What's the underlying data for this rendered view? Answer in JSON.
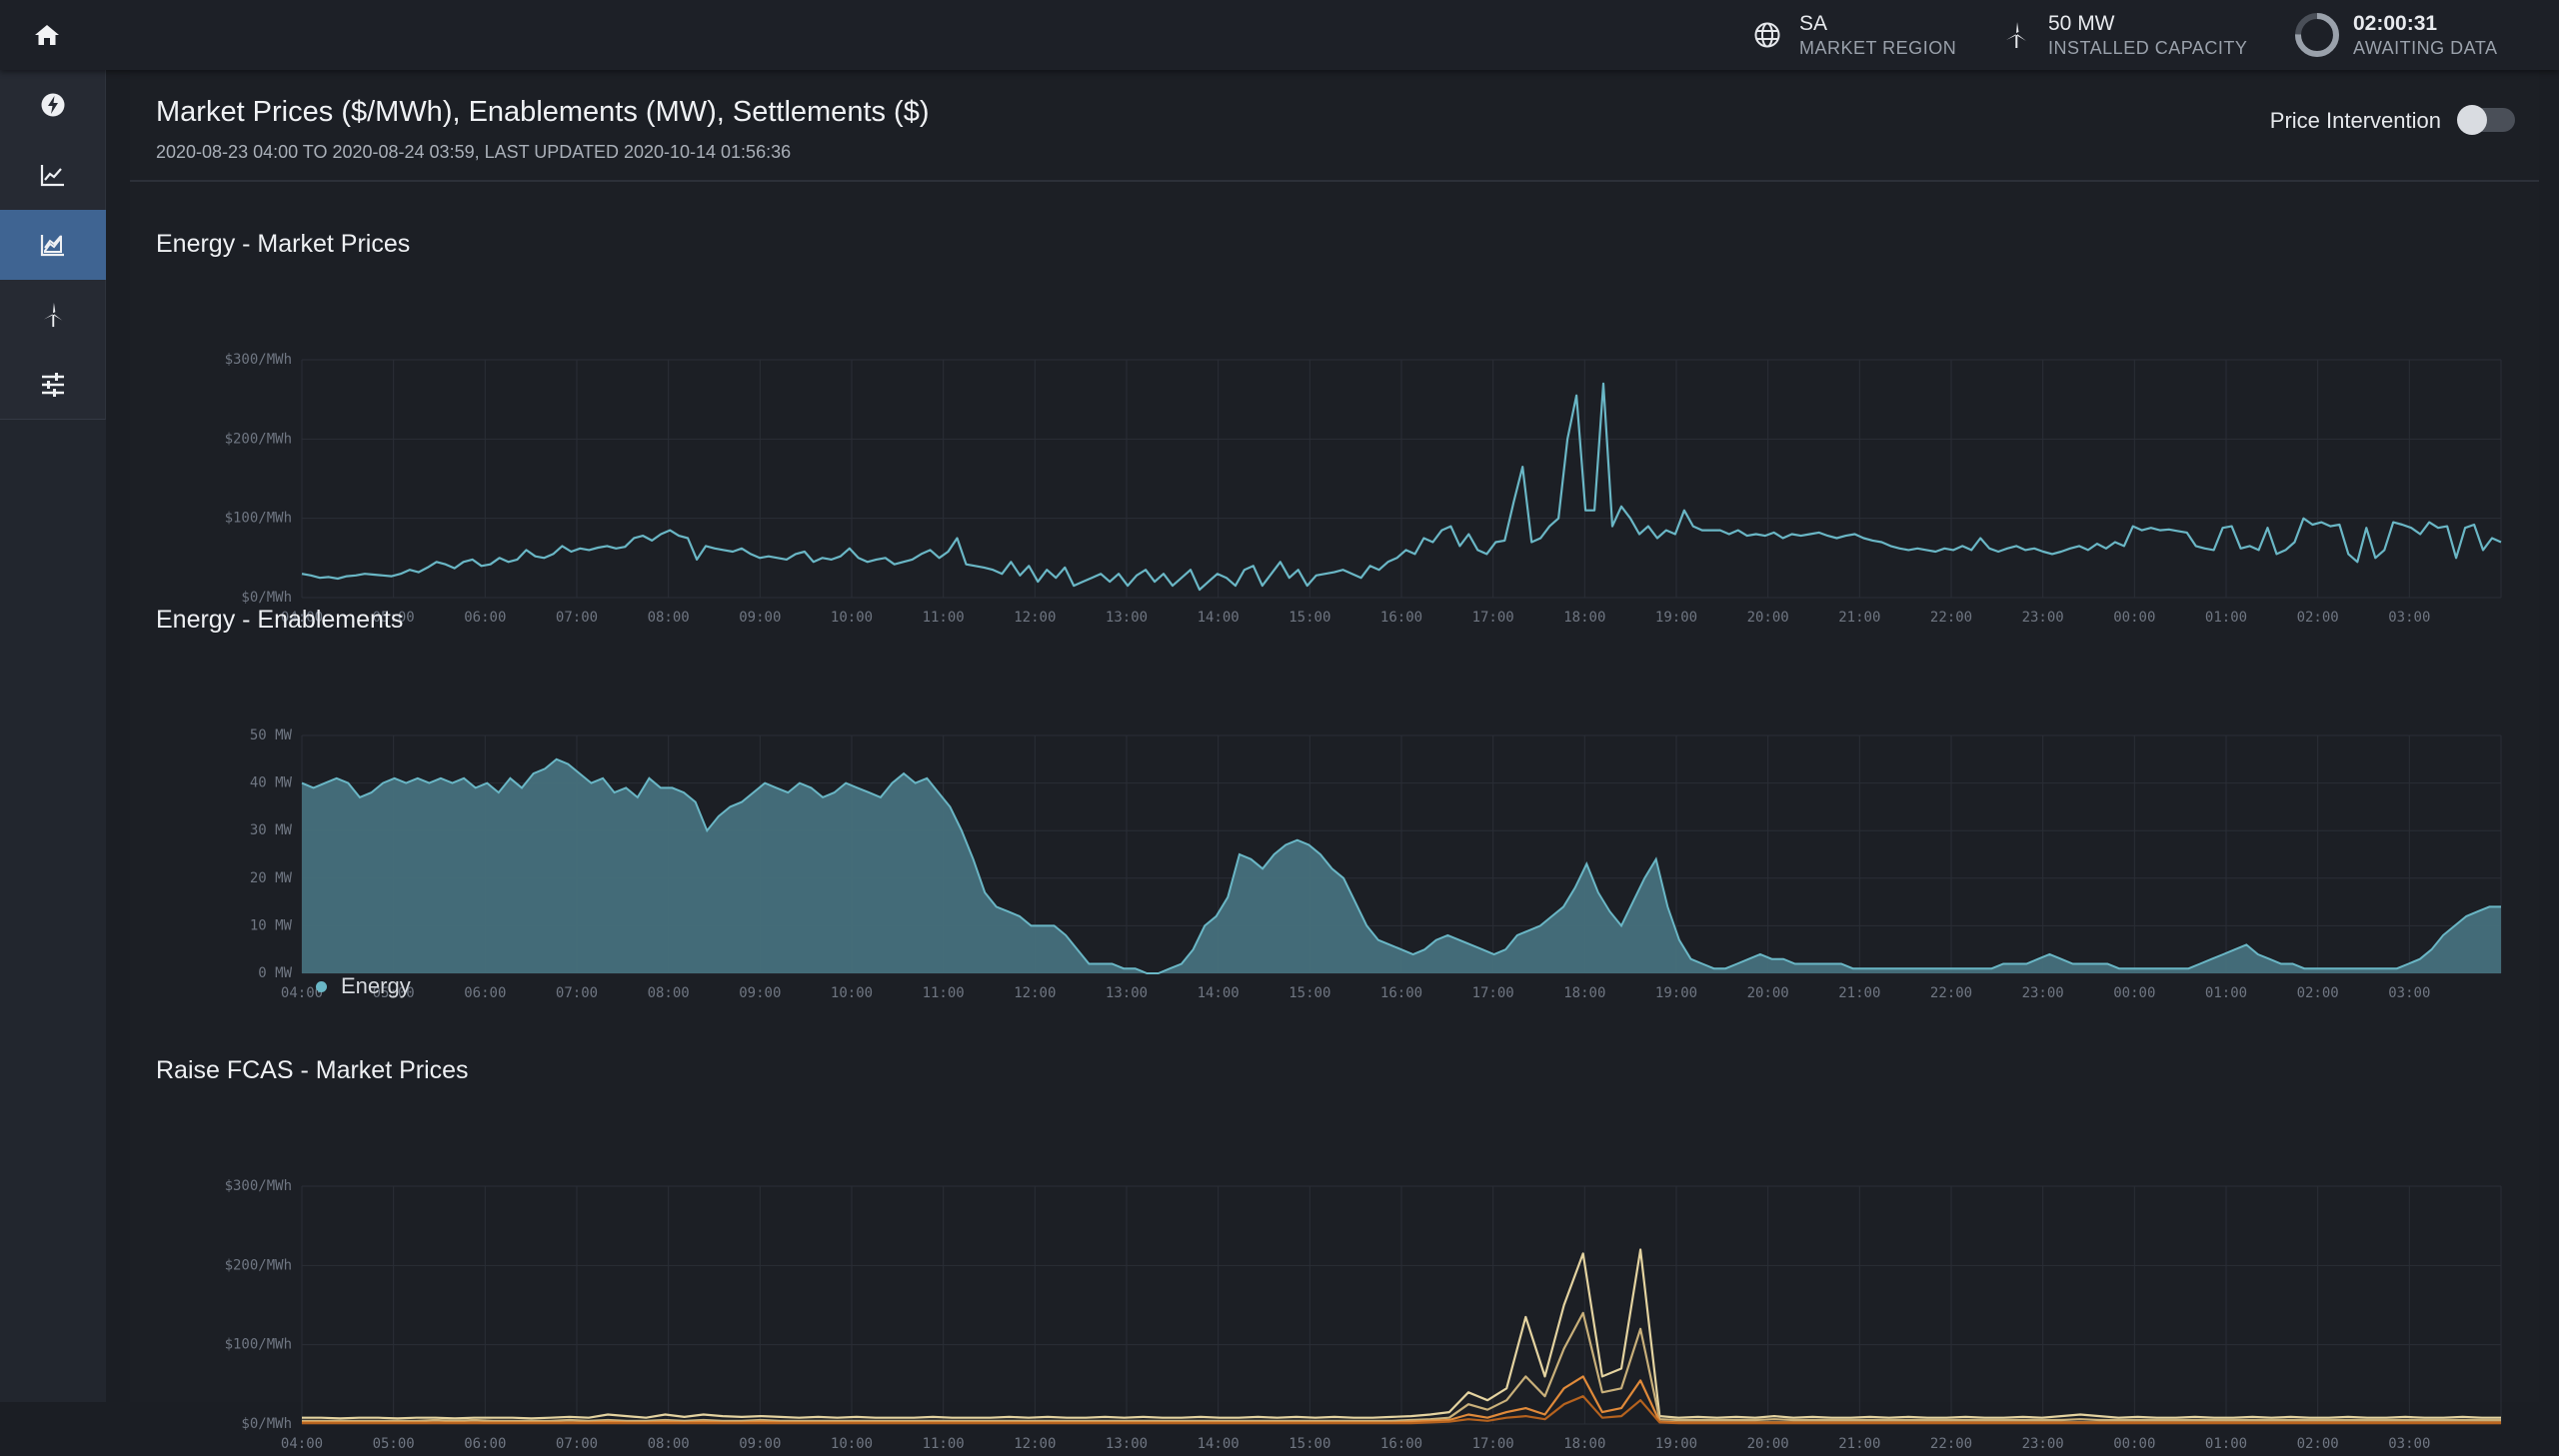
{
  "topbar": {
    "region_value": "SA",
    "region_label": "MARKET REGION",
    "capacity_value": "50 MW",
    "capacity_label": "INSTALLED CAPACITY",
    "timer_value": "02:00:31",
    "timer_label": "AWAITING DATA"
  },
  "sidebar": {
    "items": [
      {
        "icon": "home-icon"
      },
      {
        "icon": "lightning-icon"
      },
      {
        "icon": "line-chart-icon"
      },
      {
        "icon": "area-chart-icon",
        "active": true
      },
      {
        "icon": "wind-turbine-icon"
      },
      {
        "icon": "sliders-icon"
      }
    ]
  },
  "header": {
    "title": "Market Prices ($/MWh), Enablements (MW), Settlements ($)",
    "subtitle": "2020-08-23 04:00 TO 2020-08-24 03:59, LAST UPDATED 2020-10-14 01:56:36",
    "price_intervention_label": "Price Intervention",
    "price_intervention_on": false
  },
  "colors": {
    "energy": "#6ab7c6",
    "energy_fill": "#46707c",
    "raise_a": "#e4d3a0",
    "raise_b": "#c9b07a",
    "raise_c": "#e08a3a",
    "raise_d": "#b5621e",
    "active_nav": "#3f6492"
  },
  "chart_data": [
    {
      "id": "energy-prices",
      "title": "Energy - Market Prices",
      "type": "line",
      "x_ticks": [
        "04:00",
        "05:00",
        "06:00",
        "07:00",
        "08:00",
        "09:00",
        "10:00",
        "11:00",
        "12:00",
        "13:00",
        "14:00",
        "15:00",
        "16:00",
        "17:00",
        "18:00",
        "19:00",
        "20:00",
        "21:00",
        "22:00",
        "23:00",
        "00:00",
        "01:00",
        "02:00",
        "03:00"
      ],
      "y_ticks": [
        "$0/MWh",
        "$100/MWh",
        "$200/MWh",
        "$300/MWh"
      ],
      "ylim": [
        0,
        300
      ],
      "grid": true,
      "series": [
        {
          "color": "#6ab7c6",
          "values": [
            30,
            28,
            25,
            26,
            24,
            27,
            28,
            30,
            29,
            28,
            27,
            30,
            35,
            32,
            38,
            45,
            42,
            37,
            45,
            48,
            40,
            42,
            50,
            45,
            48,
            60,
            52,
            50,
            55,
            65,
            58,
            62,
            60,
            63,
            65,
            62,
            64,
            75,
            78,
            72,
            80,
            85,
            78,
            75,
            48,
            65,
            62,
            60,
            58,
            62,
            55,
            50,
            52,
            50,
            48,
            55,
            58,
            45,
            50,
            48,
            52,
            62,
            50,
            45,
            48,
            50,
            42,
            45,
            48,
            55,
            60,
            50,
            58,
            75,
            42,
            40,
            38,
            35,
            30,
            45,
            28,
            40,
            20,
            35,
            25,
            38,
            15,
            20,
            25,
            30,
            20,
            30,
            15,
            28,
            35,
            20,
            30,
            15,
            25,
            35,
            10,
            20,
            30,
            25,
            15,
            35,
            40,
            15,
            30,
            45,
            25,
            35,
            15,
            28,
            30,
            32,
            35,
            30,
            25,
            40,
            35,
            45,
            50,
            60,
            55,
            75,
            70,
            85,
            90,
            65,
            80,
            60,
            55,
            70,
            72,
            120,
            165,
            70,
            75,
            90,
            100,
            200,
            255,
            110,
            110,
            270,
            90,
            115,
            100,
            80,
            90,
            75,
            85,
            80,
            110,
            90,
            85,
            85,
            85,
            80,
            85,
            78,
            80,
            78,
            82,
            75,
            80,
            78,
            80,
            82,
            78,
            75,
            78,
            80,
            75,
            72,
            70,
            65,
            62,
            60,
            62,
            60,
            58,
            62,
            60,
            65,
            60,
            75,
            62,
            58,
            62,
            65,
            60,
            62,
            58,
            55,
            58,
            62,
            65,
            60,
            68,
            62,
            70,
            65,
            90,
            85,
            88,
            85,
            86,
            84,
            82,
            65,
            62,
            60,
            88,
            90,
            62,
            65,
            60,
            88,
            55,
            60,
            70,
            100,
            92,
            95,
            90,
            92,
            55,
            45,
            88,
            50,
            60,
            95,
            92,
            88,
            80,
            95,
            88,
            90,
            50,
            88,
            92,
            60,
            75,
            70
          ]
        }
      ]
    },
    {
      "id": "energy-enablements",
      "title": "Energy - Enablements",
      "type": "area",
      "x_ticks": [
        "04:00",
        "05:00",
        "06:00",
        "07:00",
        "08:00",
        "09:00",
        "10:00",
        "11:00",
        "12:00",
        "13:00",
        "14:00",
        "15:00",
        "16:00",
        "17:00",
        "18:00",
        "19:00",
        "20:00",
        "21:00",
        "22:00",
        "23:00",
        "00:00",
        "01:00",
        "02:00",
        "03:00"
      ],
      "y_ticks": [
        "0 MW",
        "10 MW",
        "20 MW",
        "30 MW",
        "40 MW",
        "50 MW"
      ],
      "ylim": [
        0,
        50
      ],
      "grid": true,
      "legend": [
        "Energy"
      ],
      "series": [
        {
          "name": "Energy",
          "color": "#6ab7c6",
          "values": [
            40,
            39,
            40,
            41,
            40,
            37,
            38,
            40,
            41,
            40,
            41,
            40,
            41,
            40,
            41,
            39,
            40,
            38,
            41,
            39,
            42,
            43,
            45,
            44,
            42,
            40,
            41,
            38,
            39,
            37,
            41,
            39,
            39,
            38,
            36,
            30,
            33,
            35,
            36,
            38,
            40,
            39,
            38,
            40,
            39,
            37,
            38,
            40,
            39,
            38,
            37,
            40,
            42,
            40,
            41,
            38,
            35,
            30,
            24,
            17,
            14,
            13,
            12,
            10,
            10,
            10,
            8,
            5,
            2,
            2,
            2,
            1,
            1,
            0,
            0,
            1,
            2,
            5,
            10,
            12,
            16,
            25,
            24,
            22,
            25,
            27,
            28,
            27,
            25,
            22,
            20,
            15,
            10,
            7,
            6,
            5,
            4,
            5,
            7,
            8,
            7,
            6,
            5,
            4,
            5,
            8,
            9,
            10,
            12,
            14,
            18,
            23,
            17,
            13,
            10,
            15,
            20,
            24,
            14,
            7,
            3,
            2,
            1,
            1,
            2,
            3,
            4,
            3,
            3,
            2,
            2,
            2,
            2,
            2,
            1,
            1,
            1,
            1,
            1,
            1,
            1,
            1,
            1,
            1,
            1,
            1,
            1,
            2,
            2,
            2,
            3,
            4,
            3,
            2,
            2,
            2,
            2,
            1,
            1,
            1,
            1,
            1,
            1,
            1,
            2,
            3,
            4,
            5,
            6,
            4,
            3,
            2,
            2,
            1,
            1,
            1,
            1,
            1,
            1,
            1,
            1,
            1,
            2,
            3,
            5,
            8,
            10,
            12,
            13,
            14,
            14
          ]
        }
      ]
    },
    {
      "id": "raise-fcas-prices",
      "title": "Raise FCAS - Market Prices",
      "type": "line",
      "x_ticks": [
        "04:00",
        "05:00",
        "06:00",
        "07:00",
        "08:00",
        "09:00",
        "10:00",
        "11:00",
        "12:00",
        "13:00",
        "14:00",
        "15:00",
        "16:00",
        "17:00",
        "18:00",
        "19:00",
        "20:00",
        "21:00",
        "22:00",
        "23:00",
        "00:00",
        "01:00",
        "02:00",
        "03:00"
      ],
      "y_ticks": [
        "$0/MWh",
        "$100/MWh",
        "$200/MWh",
        "$300/MWh"
      ],
      "ylim": [
        0,
        300
      ],
      "grid": true,
      "series": [
        {
          "color": "#e4d3a0",
          "values": [
            8,
            8,
            7,
            8,
            8,
            7,
            8,
            8,
            7,
            8,
            8,
            8,
            7,
            8,
            9,
            8,
            12,
            10,
            8,
            12,
            9,
            12,
            10,
            9,
            10,
            9,
            8,
            9,
            8,
            9,
            8,
            8,
            8,
            9,
            8,
            8,
            8,
            9,
            8,
            9,
            8,
            8,
            9,
            8,
            9,
            8,
            8,
            9,
            8,
            8,
            9,
            8,
            9,
            8,
            9,
            8,
            8,
            9,
            10,
            12,
            15,
            40,
            30,
            45,
            135,
            60,
            150,
            215,
            60,
            70,
            220,
            10,
            8,
            9,
            8,
            9,
            8,
            10,
            8,
            9,
            8,
            8,
            9,
            8,
            9,
            8,
            8,
            9,
            8,
            8,
            9,
            8,
            10,
            12,
            10,
            8,
            9,
            8,
            8,
            9,
            8,
            8,
            9,
            8,
            9,
            8,
            8,
            9,
            8,
            8,
            9,
            8,
            8,
            9,
            8,
            8
          ]
        },
        {
          "color": "#c9b07a",
          "values": [
            4,
            4,
            4,
            4,
            4,
            4,
            4,
            5,
            4,
            5,
            4,
            4,
            4,
            4,
            5,
            4,
            5,
            4,
            4,
            5,
            4,
            5,
            4,
            4,
            5,
            4,
            4,
            4,
            4,
            4,
            4,
            4,
            4,
            4,
            4,
            4,
            4,
            4,
            4,
            4,
            4,
            4,
            4,
            4,
            4,
            4,
            4,
            4,
            4,
            4,
            4,
            4,
            4,
            4,
            4,
            4,
            4,
            4,
            5,
            6,
            8,
            25,
            18,
            30,
            60,
            35,
            95,
            140,
            40,
            45,
            120,
            6,
            5,
            5,
            5,
            5,
            5,
            6,
            5,
            5,
            5,
            5,
            5,
            5,
            5,
            5,
            5,
            5,
            5,
            5,
            5,
            5,
            5,
            6,
            5,
            5,
            5,
            5,
            5,
            5,
            5,
            5,
            5,
            5,
            5,
            5,
            5,
            5,
            5,
            5,
            5,
            5,
            5,
            5,
            5,
            5
          ]
        },
        {
          "color": "#e08a3a",
          "values": [
            2,
            2,
            2,
            2,
            2,
            2,
            2,
            2,
            2,
            2,
            2,
            2,
            2,
            2,
            2,
            2,
            3,
            2,
            2,
            3,
            2,
            3,
            2,
            2,
            3,
            2,
            2,
            2,
            2,
            2,
            2,
            2,
            2,
            2,
            2,
            2,
            2,
            2,
            2,
            2,
            2,
            2,
            2,
            2,
            2,
            2,
            2,
            2,
            2,
            2,
            2,
            2,
            2,
            2,
            2,
            2,
            2,
            2,
            3,
            4,
            5,
            12,
            8,
            15,
            20,
            12,
            45,
            60,
            15,
            20,
            55,
            3,
            2,
            2,
            2,
            2,
            2,
            2,
            2,
            2,
            2,
            2,
            2,
            2,
            2,
            2,
            2,
            2,
            2,
            2,
            2,
            2,
            2,
            2,
            2,
            2,
            2,
            2,
            2,
            2,
            2,
            2,
            2,
            2,
            2,
            2,
            2,
            2,
            2,
            2,
            2,
            2,
            2,
            2,
            2,
            2
          ]
        },
        {
          "color": "#b5621e",
          "values": [
            1,
            1,
            1,
            1,
            1,
            1,
            1,
            1,
            1,
            1,
            1,
            1,
            1,
            1,
            1,
            1,
            1,
            1,
            1,
            1,
            1,
            1,
            1,
            1,
            1,
            1,
            1,
            1,
            1,
            1,
            1,
            1,
            1,
            1,
            1,
            1,
            1,
            1,
            1,
            1,
            1,
            1,
            1,
            1,
            1,
            1,
            1,
            1,
            1,
            1,
            1,
            1,
            1,
            1,
            1,
            1,
            1,
            1,
            1,
            2,
            3,
            6,
            4,
            8,
            10,
            6,
            25,
            35,
            8,
            10,
            30,
            2,
            1,
            1,
            1,
            1,
            1,
            1,
            1,
            1,
            1,
            1,
            1,
            1,
            1,
            1,
            1,
            1,
            1,
            1,
            1,
            1,
            1,
            1,
            1,
            1,
            1,
            1,
            1,
            1,
            1,
            1,
            1,
            1,
            1,
            1,
            1,
            1,
            1,
            1,
            1,
            1,
            1,
            1,
            1,
            1
          ]
        }
      ]
    }
  ]
}
